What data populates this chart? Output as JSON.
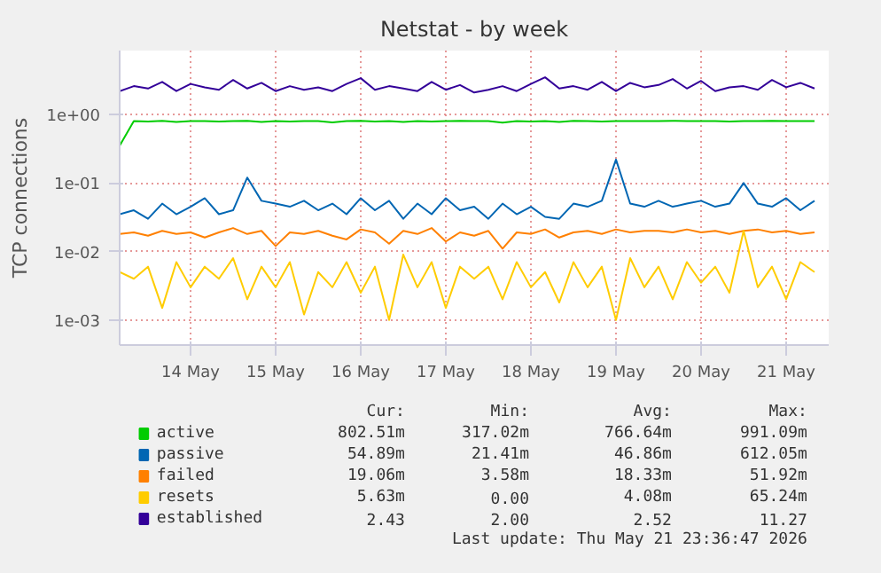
{
  "chart_data": {
    "type": "line",
    "title": "Netstat - by week",
    "ylabel": "TCP connections",
    "x": [
      "2026-05-13T16:00",
      "2026-05-13T20:00",
      "2026-05-14T00:00",
      "2026-05-14T04:00",
      "2026-05-14T08:00",
      "2026-05-14T12:00",
      "2026-05-14T16:00",
      "2026-05-14T20:00",
      "2026-05-15T00:00",
      "2026-05-15T04:00",
      "2026-05-15T08:00",
      "2026-05-15T12:00",
      "2026-05-15T16:00",
      "2026-05-15T20:00",
      "2026-05-16T00:00",
      "2026-05-16T04:00",
      "2026-05-16T08:00",
      "2026-05-16T12:00",
      "2026-05-16T16:00",
      "2026-05-16T20:00",
      "2026-05-17T00:00",
      "2026-05-17T04:00",
      "2026-05-17T08:00",
      "2026-05-17T12:00",
      "2026-05-17T16:00",
      "2026-05-17T20:00",
      "2026-05-18T00:00",
      "2026-05-18T04:00",
      "2026-05-18T08:00",
      "2026-05-18T12:00",
      "2026-05-18T16:00",
      "2026-05-18T20:00",
      "2026-05-19T00:00",
      "2026-05-19T04:00",
      "2026-05-19T08:00",
      "2026-05-19T12:00",
      "2026-05-19T16:00",
      "2026-05-19T20:00",
      "2026-05-20T00:00",
      "2026-05-20T04:00",
      "2026-05-20T08:00",
      "2026-05-20T12:00",
      "2026-05-20T16:00",
      "2026-05-20T20:00",
      "2026-05-21T00:00",
      "2026-05-21T04:00",
      "2026-05-21T08:00",
      "2026-05-21T12:00",
      "2026-05-21T16:00",
      "2026-05-21T20:00"
    ],
    "series": [
      {
        "name": "active",
        "color": "#00cc00",
        "values": [
          0.35,
          0.8,
          0.79,
          0.81,
          0.78,
          0.8,
          0.8,
          0.79,
          0.8,
          0.81,
          0.78,
          0.8,
          0.79,
          0.8,
          0.8,
          0.77,
          0.8,
          0.81,
          0.79,
          0.8,
          0.78,
          0.8,
          0.79,
          0.8,
          0.81,
          0.8,
          0.8,
          0.76,
          0.8,
          0.79,
          0.8,
          0.78,
          0.81,
          0.8,
          0.79,
          0.8,
          0.8,
          0.8,
          0.8,
          0.81,
          0.8,
          0.8,
          0.8,
          0.79,
          0.8,
          0.8,
          0.81,
          0.8,
          0.8,
          0.8
        ]
      },
      {
        "name": "passive",
        "color": "#0066b3",
        "values": [
          0.035,
          0.04,
          0.03,
          0.05,
          0.035,
          0.045,
          0.06,
          0.035,
          0.04,
          0.12,
          0.055,
          0.05,
          0.045,
          0.055,
          0.04,
          0.05,
          0.035,
          0.06,
          0.04,
          0.055,
          0.03,
          0.05,
          0.035,
          0.06,
          0.04,
          0.045,
          0.03,
          0.05,
          0.035,
          0.045,
          0.032,
          0.03,
          0.05,
          0.045,
          0.055,
          0.22,
          0.05,
          0.045,
          0.055,
          0.045,
          0.05,
          0.055,
          0.045,
          0.05,
          0.1,
          0.05,
          0.045,
          0.06,
          0.04,
          0.055
        ]
      },
      {
        "name": "failed",
        "color": "#ff8000",
        "values": [
          0.018,
          0.019,
          0.017,
          0.02,
          0.018,
          0.019,
          0.016,
          0.019,
          0.022,
          0.018,
          0.02,
          0.012,
          0.019,
          0.018,
          0.02,
          0.017,
          0.015,
          0.021,
          0.019,
          0.013,
          0.02,
          0.018,
          0.022,
          0.014,
          0.019,
          0.017,
          0.02,
          0.011,
          0.019,
          0.018,
          0.021,
          0.016,
          0.019,
          0.02,
          0.018,
          0.021,
          0.019,
          0.02,
          0.02,
          0.019,
          0.021,
          0.019,
          0.02,
          0.018,
          0.02,
          0.021,
          0.019,
          0.02,
          0.018,
          0.019
        ]
      },
      {
        "name": "resets",
        "color": "#ffcc00",
        "values": [
          0.005,
          0.004,
          0.006,
          0.0015,
          0.007,
          0.003,
          0.006,
          0.004,
          0.008,
          0.002,
          0.006,
          0.003,
          0.007,
          0.0012,
          0.005,
          0.003,
          0.007,
          0.0025,
          0.006,
          0.001,
          0.009,
          0.003,
          0.007,
          0.0015,
          0.006,
          0.004,
          0.006,
          0.002,
          0.007,
          0.003,
          0.005,
          0.0018,
          0.007,
          0.003,
          0.006,
          0.001,
          0.008,
          0.003,
          0.006,
          0.002,
          0.007,
          0.0035,
          0.006,
          0.0025,
          0.02,
          0.003,
          0.006,
          0.002,
          0.007,
          0.005
        ]
      },
      {
        "name": "established",
        "color": "#330099",
        "values": [
          2.2,
          2.6,
          2.4,
          3.0,
          2.2,
          2.8,
          2.5,
          2.3,
          3.2,
          2.4,
          2.9,
          2.2,
          2.6,
          2.3,
          2.5,
          2.2,
          2.8,
          3.4,
          2.3,
          2.6,
          2.4,
          2.2,
          3.0,
          2.3,
          2.7,
          2.1,
          2.3,
          2.6,
          2.2,
          2.8,
          3.5,
          2.4,
          2.6,
          2.3,
          3.0,
          2.2,
          2.9,
          2.5,
          2.7,
          3.3,
          2.4,
          3.1,
          2.2,
          2.5,
          2.6,
          2.3,
          3.2,
          2.5,
          2.9,
          2.4
        ]
      }
    ],
    "log": "y",
    "ylim": [
      0.00043,
      8.6
    ],
    "yticks": [
      {
        "value": 0.001,
        "label": "1e-03"
      },
      {
        "value": 0.01,
        "label": "1e-02"
      },
      {
        "value": 0.1,
        "label": "1e-01"
      },
      {
        "value": 1,
        "label": "1e+00"
      }
    ],
    "xlim": [
      "2026-05-13T16:00",
      "2026-05-22T00:00"
    ],
    "xticks": [
      {
        "value": "2026-05-14T12:00",
        "label": "14 May"
      },
      {
        "value": "2026-05-15T12:00",
        "label": "15 May"
      },
      {
        "value": "2026-05-16T12:00",
        "label": "16 May"
      },
      {
        "value": "2026-05-17T12:00",
        "label": "17 May"
      },
      {
        "value": "2026-05-18T12:00",
        "label": "18 May"
      },
      {
        "value": "2026-05-19T12:00",
        "label": "19 May"
      },
      {
        "value": "2026-05-20T12:00",
        "label": "20 May"
      },
      {
        "value": "2026-05-21T12:00",
        "label": "21 May"
      }
    ],
    "grid": true,
    "legend": "bottom",
    "annotations": [
      "Cur:",
      "Min:",
      "Avg:",
      "Max:",
      "802.51m",
      "317.02m",
      "766.64m",
      "991.09m",
      "54.89m",
      "21.41m",
      "46.86m",
      "612.05m",
      "19.06m",
      "3.58m",
      "18.33m",
      "51.92m",
      "5.63m",
      "0.00",
      "4.08m",
      "65.24m",
      "2.43",
      "2.00",
      "2.52",
      "11.27",
      "Last update: Thu May 21 23:36:47 2026"
    ]
  }
}
